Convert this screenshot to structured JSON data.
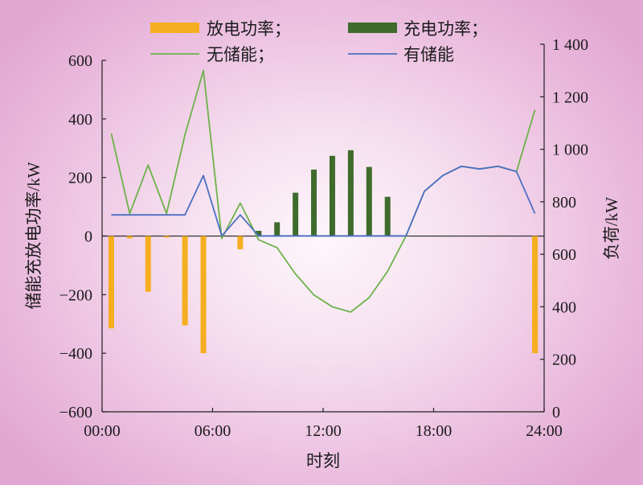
{
  "chart_data": {
    "type": "bar",
    "legend": "top",
    "grid": false,
    "xlabel": "时刻",
    "xlim": [
      "00:00",
      "24:00"
    ],
    "xtick_labels": [
      "00:00",
      "06:00",
      "12:00",
      "18:00",
      "24:00"
    ],
    "x": [
      "00:30",
      "01:30",
      "02:30",
      "03:30",
      "04:30",
      "05:30",
      "06:30",
      "07:30",
      "08:30",
      "09:30",
      "10:30",
      "11:30",
      "12:30",
      "13:30",
      "14:30",
      "15:30",
      "16:30",
      "17:30",
      "18:30",
      "19:30",
      "20:30",
      "21:30",
      "22:30",
      "23:30"
    ],
    "ylabel": "储能充放电功率/kW",
    "ylim": [
      -600,
      600
    ],
    "ytick_labels": [
      "600",
      "400",
      "200",
      "0",
      "−200",
      "−400",
      "−600"
    ],
    "y2label": "负荷/kW",
    "y2lim": [
      0,
      1400
    ],
    "y2tick_labels": [
      "1 400",
      "1 200",
      "1 000",
      "800",
      "600",
      "400",
      "200",
      "0"
    ],
    "series": [
      {
        "name": "放电功率；",
        "type": "bar",
        "axis": "left",
        "color": "#f5ae20",
        "values": [
          -315,
          -8,
          -190,
          -5,
          -305,
          -400,
          0,
          -45,
          0,
          0,
          0,
          0,
          0,
          0,
          0,
          0,
          0,
          0,
          0,
          0,
          0,
          0,
          0,
          -400
        ]
      },
      {
        "name": "充电功率；",
        "type": "bar",
        "axis": "left",
        "color": "#3f6b2c",
        "values": [
          0,
          0,
          0,
          0,
          0,
          0,
          0,
          0,
          18,
          47,
          148,
          227,
          274,
          293,
          236,
          134,
          0,
          0,
          0,
          0,
          0,
          0,
          0,
          0
        ]
      },
      {
        "name": "无储能；",
        "type": "line",
        "axis": "right",
        "color": "#6cb34b",
        "values": [
          1060,
          755,
          940,
          755,
          1055,
          1300,
          660,
          795,
          655,
          625,
          525,
          445,
          400,
          380,
          435,
          535,
          670,
          840,
          900,
          935,
          925,
          935,
          915,
          1150
        ]
      },
      {
        "name": "有储能",
        "type": "line",
        "axis": "right",
        "color": "#4b6fc3",
        "values": [
          750,
          750,
          750,
          750,
          750,
          900,
          670,
          750,
          670,
          670,
          670,
          670,
          670,
          670,
          670,
          670,
          670,
          840,
          900,
          935,
          925,
          935,
          915,
          755
        ]
      }
    ]
  }
}
